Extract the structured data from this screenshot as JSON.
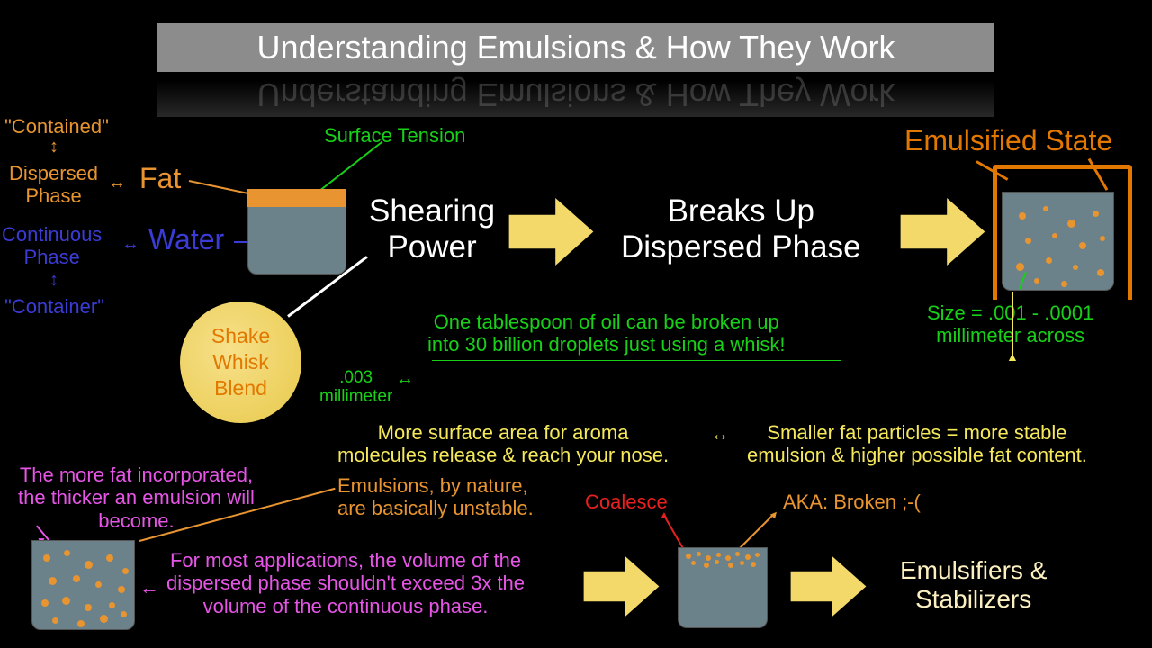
{
  "title": "Understanding Emulsions & How They Work",
  "colors": {
    "orange": "#e89430",
    "darkorange": "#e27800",
    "blue": "#3b3bd6",
    "green": "#18d018",
    "magenta": "#e755e7",
    "yellow": "#f5e85a",
    "red": "#e82020",
    "white": "#ffffff",
    "cream": "#fcf0c0",
    "arrowFill": "#f2d96a"
  },
  "labels": {
    "contained": "\"Contained\"",
    "dispersedPhase": "Dispersed\nPhase",
    "fat": "Fat",
    "continuousPhase": "Continuous\nPhase",
    "water": "Water",
    "container": "\"Container\"",
    "surfaceTension": "Surface Tension",
    "shearingPower": "Shearing\nPower",
    "shake": "Shake",
    "whisk": "Whisk",
    "blend": "Blend",
    "breaksUp": "Breaks Up\nDispersed Phase",
    "emulsifiedState": "Emulsified State",
    "sizeNote": "Size = .001 - .0001\nmillimeter across",
    "tablespoonFact": "One tablespoon of oil can be broken up\ninto 30 billion droplets just using a whisk!",
    "m003": ".003\nmillimeter",
    "surfaceArea": "More surface area for aroma\nmolecules release & reach your nose.",
    "smallerFat": "Smaller fat particles = more stable\nemulsion & higher possible fat content.",
    "thickerNote": "The more fat incorporated,\nthe thicker an emulsion will\nbecome.",
    "unstableNote": "Emulsions, by nature,\nare basically unstable.",
    "volumeNote": "For most applications, the volume of the\ndispersed phase shouldn't exceed 3x the\nvolume of the continuous phase.",
    "coalesce": "Coalesce",
    "broken": "AKA: Broken ;-(",
    "stabilizers": "Emulsifiers &\nStabilizers"
  },
  "font": {
    "title": 36,
    "body": 22,
    "bigwhite": 32
  },
  "dots": {
    "emulsified": [
      [
        18,
        22,
        8
      ],
      [
        45,
        15,
        6
      ],
      [
        72,
        30,
        9
      ],
      [
        100,
        20,
        7
      ],
      [
        25,
        50,
        7
      ],
      [
        55,
        45,
        6
      ],
      [
        85,
        55,
        8
      ],
      [
        108,
        48,
        6
      ],
      [
        15,
        78,
        9
      ],
      [
        48,
        72,
        7
      ],
      [
        78,
        80,
        6
      ],
      [
        105,
        85,
        8
      ],
      [
        35,
        95,
        6
      ],
      [
        65,
        98,
        7
      ]
    ],
    "beaker2": [
      [
        12,
        15,
        8
      ],
      [
        35,
        10,
        7
      ],
      [
        58,
        22,
        9
      ],
      [
        82,
        15,
        8
      ],
      [
        100,
        30,
        7
      ],
      [
        18,
        40,
        9
      ],
      [
        45,
        38,
        8
      ],
      [
        70,
        45,
        7
      ],
      [
        95,
        50,
        8
      ],
      [
        10,
        65,
        8
      ],
      [
        33,
        62,
        9
      ],
      [
        58,
        70,
        8
      ],
      [
        85,
        68,
        7
      ],
      [
        22,
        85,
        7
      ],
      [
        50,
        88,
        8
      ],
      [
        75,
        82,
        9
      ],
      [
        98,
        78,
        7
      ]
    ],
    "beaker3top": [
      [
        8,
        6,
        6
      ],
      [
        20,
        4,
        5
      ],
      [
        30,
        8,
        6
      ],
      [
        42,
        5,
        5
      ],
      [
        52,
        8,
        6
      ],
      [
        63,
        4,
        5
      ],
      [
        74,
        7,
        6
      ],
      [
        85,
        5,
        5
      ],
      [
        14,
        14,
        5
      ],
      [
        28,
        16,
        6
      ],
      [
        40,
        13,
        5
      ],
      [
        55,
        16,
        6
      ],
      [
        68,
        14,
        5
      ],
      [
        80,
        15,
        6
      ]
    ]
  }
}
